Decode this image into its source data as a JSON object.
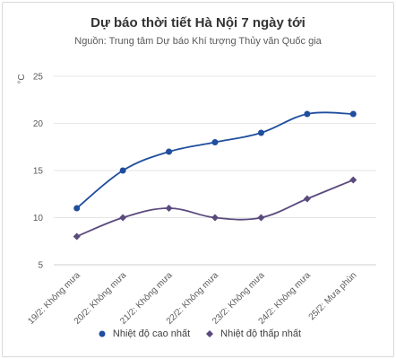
{
  "chart_data": {
    "type": "line",
    "title": "Dự báo thời tiết Hà Nội 7 ngày tới",
    "subtitle": "Nguồn: Trung tâm Dự báo Khí tượng Thủy văn Quốc gia",
    "ylabel": "°C",
    "ylim": [
      5,
      25
    ],
    "yticks": [
      "5",
      "10",
      "15",
      "20",
      "25"
    ],
    "categories": [
      "19/2: Không mưa",
      "20/2: Không mưa",
      "21/2: Không mưa",
      "22/2: Không mưa",
      "23/2: Không mưa",
      "24/2: Không mưa",
      "25/2: Mưa phùn"
    ],
    "series": [
      {
        "name": "Nhiệt độ cao nhất",
        "values": [
          11,
          15,
          17,
          18,
          19,
          21,
          21
        ],
        "color": "#1f4e9e",
        "marker": "circle"
      },
      {
        "name": "Nhiệt độ thấp nhất",
        "values": [
          8,
          10,
          11,
          10,
          10,
          12,
          14
        ],
        "color": "#5b4a7e",
        "marker": "diamond"
      }
    ],
    "grid": true,
    "legend": "bottom"
  }
}
